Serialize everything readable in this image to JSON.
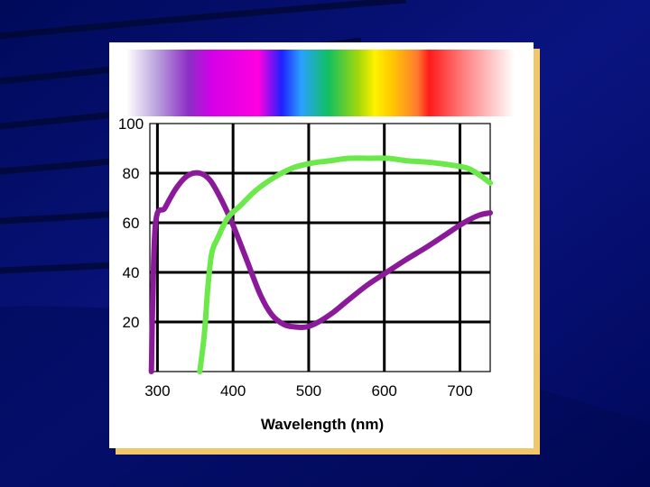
{
  "chart_data": {
    "type": "line",
    "title": "",
    "xlabel": "Wavelength (nm)",
    "ylabel": "",
    "xlim": [
      290,
      740
    ],
    "ylim": [
      0,
      100
    ],
    "x_ticks": [
      300,
      400,
      500,
      600,
      700
    ],
    "y_ticks": [
      20,
      40,
      60,
      80,
      100
    ],
    "grid": true,
    "legend": "none",
    "series": [
      {
        "color": "#8b1a9a",
        "points": [
          [
            292,
            0
          ],
          [
            297,
            58
          ],
          [
            310,
            66
          ],
          [
            325,
            74
          ],
          [
            340,
            79
          ],
          [
            356,
            80
          ],
          [
            370,
            77
          ],
          [
            385,
            69
          ],
          [
            400,
            59
          ],
          [
            418,
            45
          ],
          [
            436,
            31
          ],
          [
            451,
            23
          ],
          [
            467,
            19
          ],
          [
            482,
            18
          ],
          [
            497,
            18
          ],
          [
            513,
            20
          ],
          [
            533,
            24
          ],
          [
            553,
            29
          ],
          [
            578,
            35
          ],
          [
            603,
            40
          ],
          [
            628,
            45
          ],
          [
            655,
            50
          ],
          [
            680,
            55
          ],
          [
            705,
            60
          ],
          [
            725,
            63
          ],
          [
            740,
            64
          ]
        ]
      },
      {
        "color": "#6ce94a",
        "points": [
          [
            356,
            0
          ],
          [
            362,
            15
          ],
          [
            367,
            35
          ],
          [
            372,
            48
          ],
          [
            380,
            54
          ],
          [
            393,
            62
          ],
          [
            410,
            67
          ],
          [
            430,
            73
          ],
          [
            453,
            78
          ],
          [
            478,
            82
          ],
          [
            503,
            84
          ],
          [
            528,
            85
          ],
          [
            553,
            86
          ],
          [
            580,
            86
          ],
          [
            605,
            86
          ],
          [
            630,
            85
          ],
          [
            655,
            84.5
          ],
          [
            683,
            83.5
          ],
          [
            710,
            82
          ],
          [
            727,
            79
          ],
          [
            740,
            76
          ]
        ]
      }
    ],
    "colors": {
      "background": "#050a6e",
      "card": "#ffffff",
      "card_shadow": "#f2c66a",
      "grid": "#000000"
    }
  }
}
